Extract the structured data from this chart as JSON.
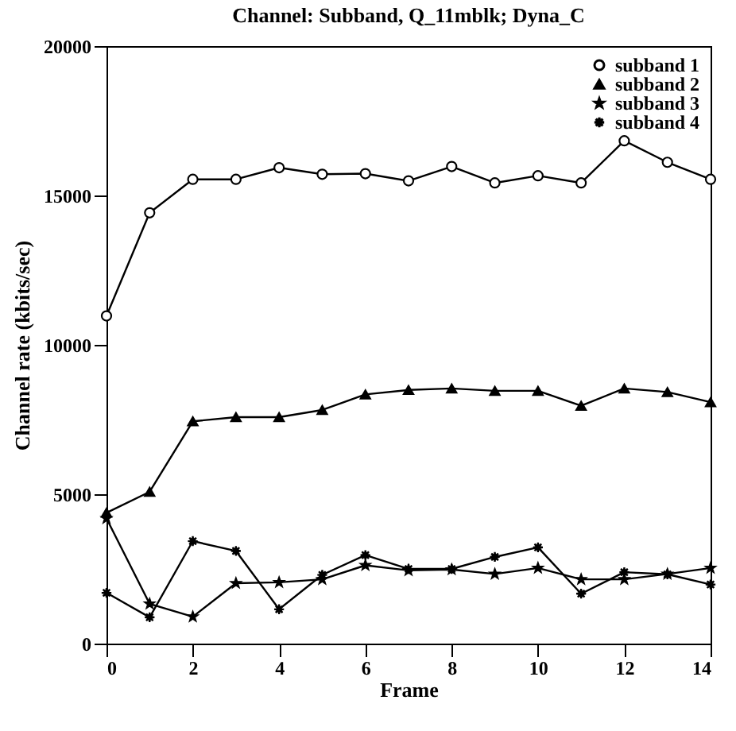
{
  "chart_data": {
    "type": "line",
    "title": "Channel: Subband, Q_11mblk; Dyna_C",
    "xlabel": "Frame",
    "ylabel": "Channel rate (kbits/sec)",
    "x": [
      0,
      1,
      2,
      3,
      4,
      5,
      6,
      7,
      8,
      9,
      10,
      11,
      12,
      13,
      14
    ],
    "series": [
      {
        "name": "subband 1",
        "color": "#000000",
        "marker": "circle",
        "values": [
          10970,
          14420,
          15540,
          15540,
          15930,
          15710,
          15730,
          15490,
          15970,
          15420,
          15660,
          15420,
          16830,
          16110,
          15540
        ]
      },
      {
        "name": "subband 2",
        "color": "#000000",
        "marker": "triangle",
        "values": [
          4380,
          5080,
          7440,
          7580,
          7580,
          7820,
          8340,
          8490,
          8540,
          8460,
          8460,
          7960,
          8540,
          8420,
          8080
        ]
      },
      {
        "name": "subband 3",
        "color": "#000000",
        "marker": "star",
        "values": [
          4190,
          1330,
          900,
          2020,
          2050,
          2150,
          2620,
          2450,
          2480,
          2330,
          2530,
          2150,
          2150,
          2330,
          2530
        ]
      },
      {
        "name": "subband 4",
        "color": "#000000",
        "marker": "cross",
        "values": [
          1700,
          880,
          3430,
          3100,
          1150,
          2300,
          2960,
          2500,
          2500,
          2900,
          3220,
          1670,
          2390,
          2320,
          1980
        ]
      }
    ],
    "xlim": [
      0,
      14
    ],
    "xticks": [
      0,
      2,
      4,
      6,
      8,
      10,
      12,
      14
    ],
    "ylim": [
      0,
      20000
    ],
    "yticks": [
      0,
      5000,
      10000,
      15000,
      20000
    ],
    "grid": false,
    "legend": "top right",
    "line_style": "solid"
  }
}
